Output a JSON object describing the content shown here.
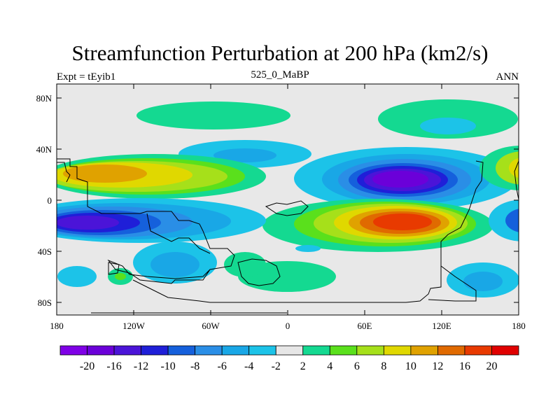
{
  "title": "Streamfunction Perturbation at 200 hPa (km2/s)",
  "left_string": "Expt = tEyib1",
  "center_string": "525_0_MaBP",
  "right_string": "ANN",
  "colors": {
    "background_land": "#e8e8e8",
    "palette": [
      "#7f00e6",
      "#6b00d9",
      "#4b14d8",
      "#1f1fd8",
      "#1560dc",
      "#2a8ee6",
      "#19a7e6",
      "#1cc3e8",
      "#e6e6e6",
      "#14d991",
      "#5ae01c",
      "#a6e01a",
      "#e0d800",
      "#e0a200",
      "#e06a00",
      "#e83a00",
      "#e00000"
    ],
    "coastline": "#000000"
  },
  "chart_data": {
    "type": "heatmap",
    "variable": "Streamfunction Perturbation",
    "level": "200 hPa",
    "units": "km2/s",
    "x_ticks": [
      "180",
      "120W",
      "60W",
      "0",
      "60E",
      "120E",
      "180"
    ],
    "y_ticks": [
      "80N",
      "40N",
      "0",
      "40S",
      "80S"
    ],
    "lon_range": [
      -180,
      180
    ],
    "lat_range": [
      -90,
      90
    ],
    "colorbar_labels": [
      "-20",
      "-16",
      "-12",
      "-10",
      "-8",
      "-6",
      "-4",
      "-2",
      "2",
      "4",
      "6",
      "8",
      "10",
      "12",
      "16",
      "20"
    ],
    "features": [
      {
        "name": "negative-center-north-pacific",
        "lon": 95,
        "lat": 17,
        "min": -20
      },
      {
        "name": "positive-center-south-indian",
        "lon": 95,
        "lat": -17,
        "max": 20
      },
      {
        "name": "positive-center-north-pacific-west",
        "lon": -145,
        "lat": 20,
        "max": 12
      },
      {
        "name": "negative-center-south-pacific",
        "lon": -145,
        "lat": -17,
        "min": -16
      }
    ]
  }
}
